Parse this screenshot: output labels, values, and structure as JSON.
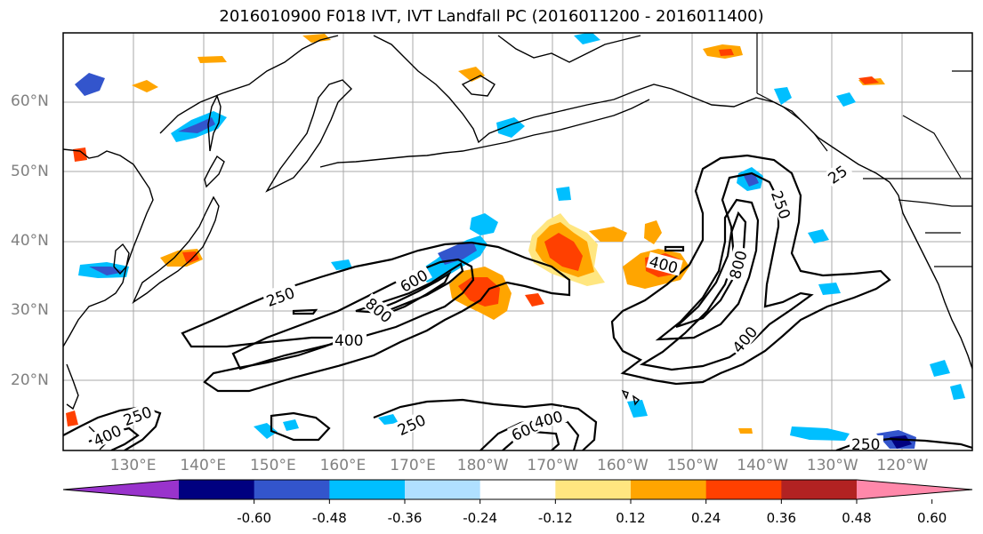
{
  "title": "2016010900 F018 IVT, IVT Landfall PC (2016011200 - 2016011400)",
  "lat_labels": [
    {
      "label": "60°N",
      "lat": 60
    },
    {
      "label": "50°N",
      "lat": 50
    },
    {
      "label": "40°N",
      "lat": 40
    },
    {
      "label": "30°N",
      "lat": 30
    },
    {
      "label": "20°N",
      "lat": 20
    }
  ],
  "lon_labels": [
    {
      "label": "130°E",
      "lon": 130
    },
    {
      "label": "140°E",
      "lon": 140
    },
    {
      "label": "150°E",
      "lon": 150
    },
    {
      "label": "160°E",
      "lon": 160
    },
    {
      "label": "170°E",
      "lon": 170
    },
    {
      "label": "180°W",
      "lon": 180
    },
    {
      "label": "170°W",
      "lon": 190
    },
    {
      "label": "160°W",
      "lon": 200
    },
    {
      "label": "150°W",
      "lon": 210
    },
    {
      "label": "140°W",
      "lon": 220
    },
    {
      "label": "130°W",
      "lon": 230
    },
    {
      "label": "120°W",
      "lon": 240
    }
  ],
  "colorbar": {
    "colors": [
      "#9933cc",
      "#000080",
      "#3355cc",
      "#00bfff",
      "#b0e0ff",
      "#ffffff",
      "#ffe680",
      "#ffa500",
      "#ff4000",
      "#b22222",
      "#ff88aa"
    ],
    "ticks": [
      "-0.60",
      "-0.48",
      "-0.36",
      "-0.24",
      "-0.12",
      "0.12",
      "0.24",
      "0.36",
      "0.48",
      "0.60"
    ]
  },
  "contour_labels": [
    {
      "text": "250"
    },
    {
      "text": "400"
    },
    {
      "text": "600"
    },
    {
      "text": "800"
    },
    {
      "text": "250"
    },
    {
      "text": "800"
    },
    {
      "text": "400"
    },
    {
      "text": "400"
    },
    {
      "text": "25"
    },
    {
      "text": "250"
    },
    {
      "text": "250"
    },
    {
      "text": "600"
    },
    {
      "text": "400"
    },
    {
      "text": "250"
    },
    {
      "text": "400"
    }
  ]
}
